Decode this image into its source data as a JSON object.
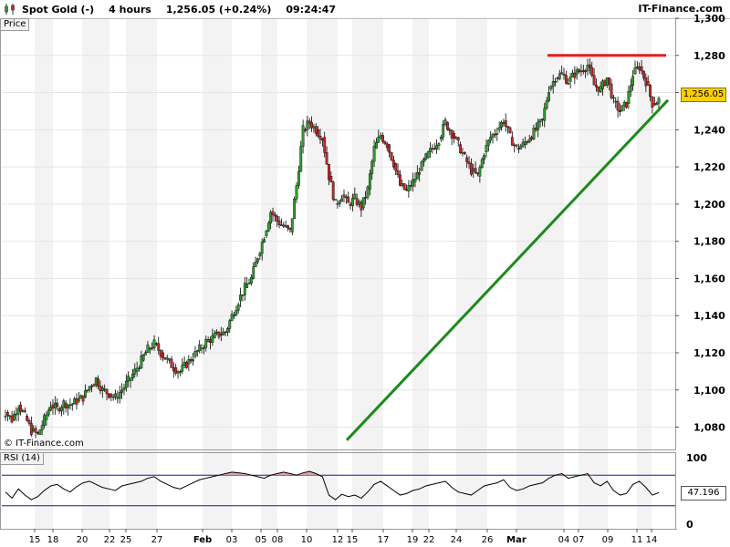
{
  "header": {
    "symbol": "Spot Gold (-)",
    "interval": "4 hours",
    "last_change": "1,256.05 (+0.24%)",
    "time": "09:24:47",
    "brand": "IT-Finance.com"
  },
  "price_panel": {
    "label": "Price",
    "watermark": "© IT-Finance.com",
    "current_price_label": "1,256.05"
  },
  "rsi_panel": {
    "label": "RSI (14)",
    "current_value_label": "47.196"
  },
  "colors": {
    "candle_up": "#2e9e2e",
    "candle_down": "#c62828",
    "wick": "#000000",
    "trendline": "#1c8a1c",
    "resistance": "#e81b1b",
    "rsi_line": "#000000",
    "rsi_band": "#1a1a8c",
    "rsi_fill": "#d7a2aa",
    "price_badge": "#ffd000"
  },
  "chart_data": [
    {
      "type": "candlestick",
      "title": "Spot Gold (-)",
      "ylim": [
        1068,
        1300
      ],
      "y_ticks": [
        "1,080",
        "1,100",
        "1,120",
        "1,140",
        "1,160",
        "1,180",
        "1,200",
        "1,220",
        "1,240",
        "1,260",
        "1,280",
        "1,300"
      ],
      "y_tick_values": [
        1080,
        1100,
        1120,
        1140,
        1160,
        1180,
        1200,
        1220,
        1240,
        1260,
        1280,
        1300
      ],
      "x_ticks": [
        "15",
        "18",
        "20",
        "22",
        "25",
        "27",
        "Feb",
        "03",
        "05",
        "08",
        "10",
        "12",
        "15",
        "17",
        "19",
        "22",
        "24",
        "26",
        "Mar",
        "04",
        "07",
        "09",
        "11",
        "14"
      ],
      "close_path": [
        1088,
        1084,
        1092,
        1086,
        1078,
        1076,
        1084,
        1092,
        1090,
        1093,
        1092,
        1094,
        1096,
        1102,
        1106,
        1100,
        1098,
        1096,
        1100,
        1105,
        1110,
        1116,
        1122,
        1125,
        1120,
        1116,
        1112,
        1110,
        1114,
        1118,
        1122,
        1126,
        1128,
        1130,
        1131,
        1140,
        1148,
        1155,
        1160,
        1172,
        1183,
        1196,
        1191,
        1188,
        1185,
        1210,
        1240,
        1244,
        1240,
        1236,
        1215,
        1200,
        1205,
        1200,
        1203,
        1198,
        1208,
        1230,
        1237,
        1232,
        1222,
        1210,
        1207,
        1212,
        1218,
        1225,
        1230,
        1235,
        1244,
        1238,
        1232,
        1225,
        1218,
        1215,
        1228,
        1236,
        1240,
        1245,
        1236,
        1230,
        1232,
        1236,
        1240,
        1245,
        1262,
        1268,
        1270,
        1266,
        1270,
        1272,
        1275,
        1264,
        1262,
        1268,
        1255,
        1250,
        1254,
        1270,
        1274,
        1266,
        1254,
        1256
      ],
      "trendline": {
        "start": [
          "15",
          1073
        ],
        "end": [
          "14",
          1253
        ]
      },
      "resistance": {
        "level": 1280,
        "from": "Mar",
        "to": "14"
      },
      "last_price": 1256.05
    },
    {
      "type": "line",
      "title": "RSI (14)",
      "ylim": [
        0,
        100
      ],
      "y_ticks": [
        "0",
        "100"
      ],
      "bands": [
        30,
        70
      ],
      "values": [
        48,
        40,
        52,
        44,
        38,
        42,
        50,
        56,
        58,
        52,
        48,
        55,
        60,
        62,
        58,
        54,
        52,
        50,
        56,
        58,
        60,
        62,
        66,
        68,
        62,
        58,
        54,
        52,
        56,
        60,
        64,
        66,
        68,
        70,
        72,
        74,
        73,
        72,
        70,
        68,
        66,
        70,
        72,
        74,
        72,
        70,
        73,
        75,
        72,
        68,
        44,
        38,
        45,
        42,
        44,
        40,
        48,
        58,
        62,
        56,
        50,
        44,
        46,
        50,
        52,
        56,
        58,
        60,
        62,
        54,
        48,
        46,
        44,
        50,
        56,
        58,
        60,
        64,
        54,
        50,
        52,
        56,
        58,
        60,
        66,
        70,
        72,
        66,
        68,
        70,
        72,
        60,
        56,
        62,
        50,
        44,
        46,
        58,
        62,
        54,
        44,
        47.196
      ]
    }
  ]
}
